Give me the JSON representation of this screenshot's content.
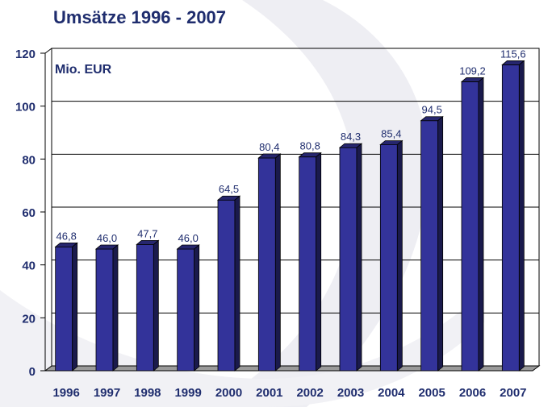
{
  "chart_data": {
    "type": "bar",
    "title": "Umsätze 1996 - 2007",
    "unit_label": "Mio. EUR",
    "categories": [
      "1996",
      "1997",
      "1998",
      "1999",
      "2000",
      "2001",
      "2002",
      "2003",
      "2004",
      "2005",
      "2006",
      "2007"
    ],
    "values": [
      46.8,
      46.0,
      47.7,
      46.0,
      64.5,
      80.4,
      80.8,
      84.3,
      85.4,
      94.5,
      109.2,
      115.6
    ],
    "value_labels": [
      "46,8",
      "46,0",
      "47,7",
      "46,0",
      "64,5",
      "80,4",
      "80,8",
      "84,3",
      "85,4",
      "94,5",
      "109,2",
      "115,6"
    ],
    "yticks": [
      0,
      20,
      40,
      60,
      80,
      100,
      120
    ],
    "ylim": [
      0,
      120
    ],
    "grid": true,
    "colors": {
      "bar_front": "#33339a",
      "bar_top": "#26266e",
      "bar_side": "#1a1a4c",
      "label": "#1f2d6e",
      "floor": "#9a9a9a"
    }
  }
}
